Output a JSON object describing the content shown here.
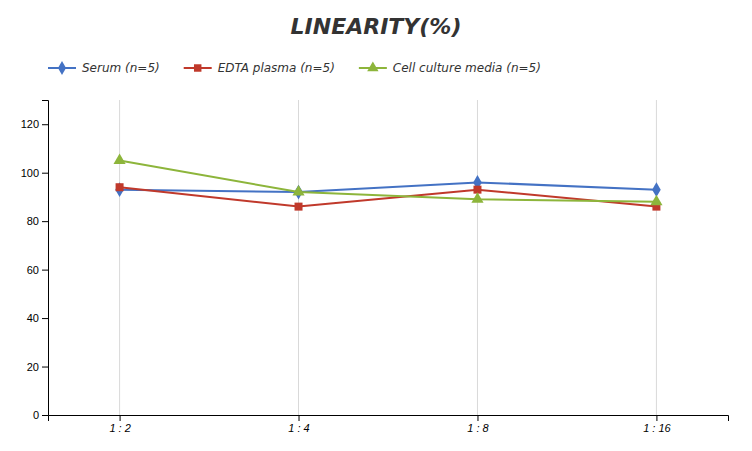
{
  "chart_data": {
    "type": "line",
    "title": "LINEARITY(%)",
    "categories": [
      "1 : 2",
      "1 : 4",
      "1 : 8",
      "1 : 16"
    ],
    "series": [
      {
        "name": "Serum (n=5)",
        "color": "#4472C4",
        "marker": "diamond",
        "values": [
          93,
          92,
          96,
          93
        ]
      },
      {
        "name": "EDTA plasma (n=5)",
        "color": "#C0392B",
        "marker": "square",
        "values": [
          94,
          86,
          93,
          86
        ]
      },
      {
        "name": "Cell culture media (n=5)",
        "color": "#8DB53B",
        "marker": "triangle",
        "values": [
          105,
          92,
          89,
          88
        ]
      }
    ],
    "ylim": [
      0,
      130
    ],
    "yticks": [
      0,
      20,
      40,
      60,
      80,
      100,
      120
    ],
    "grid": "x",
    "legend": "top"
  }
}
